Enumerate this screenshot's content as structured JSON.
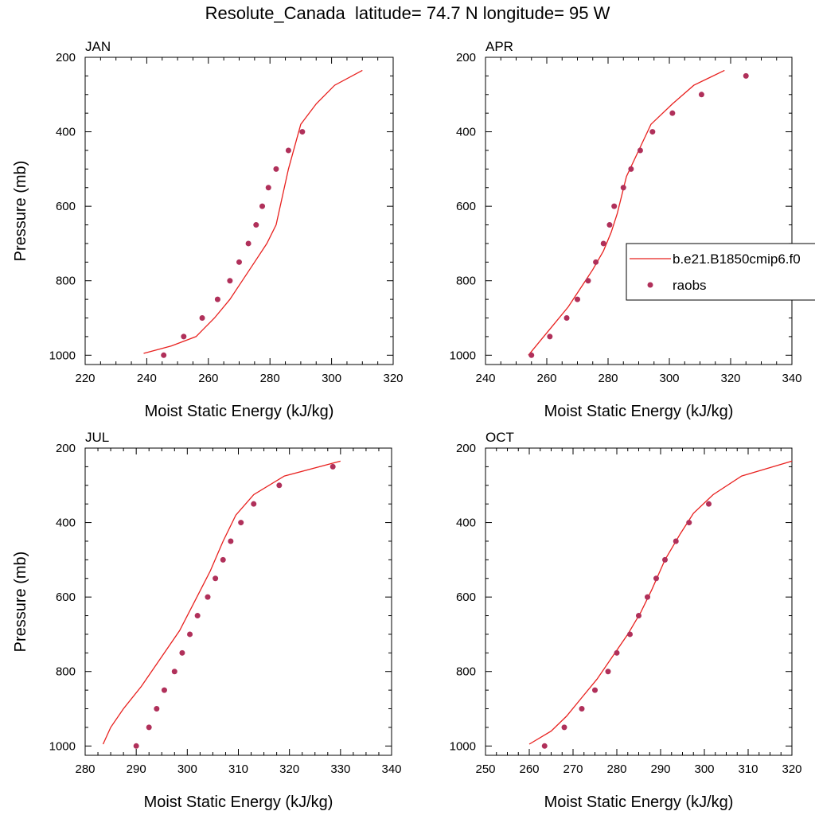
{
  "title": "Resolute_Canada  latitude= 74.7 N longitude= 95 W",
  "colors": {
    "model": "#e8201e",
    "raobs": "#b0305a",
    "frame": "#000000"
  },
  "legend": {
    "model_label": "b.e21.B1850cmip6.f0",
    "obs_label": "raobs"
  },
  "chart_data": [
    {
      "type": "line",
      "panel": "JAN",
      "xlabel": "Moist Static Energy (kJ/kg)",
      "ylabel": "Pressure (mb)",
      "xlim": [
        220,
        320
      ],
      "ylim": [
        1025,
        200
      ],
      "xticks": [
        220,
        240,
        260,
        280,
        300,
        320
      ],
      "yticks": [
        200,
        400,
        600,
        800,
        1000
      ],
      "model": {
        "x": [
          239,
          248,
          256,
          262,
          267,
          271,
          275,
          279,
          282,
          286,
          290,
          295,
          301,
          310
        ],
        "y": [
          995,
          975,
          950,
          900,
          850,
          800,
          750,
          700,
          650,
          500,
          380,
          325,
          275,
          235
        ]
      },
      "raobs": {
        "x": [
          245.5,
          252,
          258,
          263,
          267,
          270,
          273,
          275.5,
          277.5,
          279.5,
          282,
          286,
          290.5
        ],
        "y": [
          1000,
          950,
          900,
          850,
          800,
          750,
          700,
          650,
          600,
          550,
          500,
          450,
          400
        ]
      }
    },
    {
      "type": "line",
      "panel": "APR",
      "xlabel": "Moist Static Energy (kJ/kg)",
      "ylabel": "",
      "xlim": [
        240,
        340
      ],
      "ylim": [
        1025,
        200
      ],
      "xticks": [
        240,
        260,
        280,
        300,
        320,
        340
      ],
      "yticks": [
        200,
        400,
        600,
        800,
        1000
      ],
      "model": {
        "x": [
          254,
          258,
          262,
          267,
          271,
          275,
          278.5,
          281,
          283,
          286,
          290,
          294,
          301,
          308,
          318
        ],
        "y": [
          1000,
          960,
          920,
          870,
          820,
          770,
          720,
          670,
          620,
          520,
          450,
          380,
          325,
          275,
          235
        ]
      },
      "raobs": {
        "x": [
          255,
          261,
          266.5,
          270,
          273.5,
          276,
          278.5,
          280.5,
          282,
          285,
          287.5,
          290.5,
          294.5,
          301,
          310.5,
          325
        ],
        "y": [
          1000,
          950,
          900,
          850,
          800,
          750,
          700,
          650,
          600,
          550,
          500,
          450,
          400,
          350,
          300,
          250
        ]
      }
    },
    {
      "type": "line",
      "panel": "JUL",
      "xlabel": "Moist Static Energy (kJ/kg)",
      "ylabel": "Pressure (mb)",
      "xlim": [
        280,
        340
      ],
      "ylim": [
        1025,
        200
      ],
      "xticks": [
        280,
        290,
        300,
        310,
        320,
        330,
        340
      ],
      "yticks": [
        200,
        400,
        600,
        800,
        1000
      ],
      "model": {
        "x": [
          283.5,
          285,
          287.5,
          291,
          294.5,
          298.5,
          301.5,
          304.5,
          307,
          309.5,
          313,
          319,
          330
        ],
        "y": [
          995,
          950,
          900,
          840,
          770,
          690,
          610,
          530,
          450,
          380,
          325,
          275,
          235
        ]
      },
      "raobs": {
        "x": [
          290,
          292.5,
          294,
          295.5,
          297.5,
          299,
          300.5,
          302,
          304,
          305.5,
          307,
          308.5,
          310.5,
          313,
          318,
          328.5
        ],
        "y": [
          1000,
          950,
          900,
          850,
          800,
          750,
          700,
          650,
          600,
          550,
          500,
          450,
          400,
          350,
          300,
          250
        ]
      }
    },
    {
      "type": "line",
      "panel": "OCT",
      "xlabel": "Moist Static Energy (kJ/kg)",
      "ylabel": "",
      "xlim": [
        250,
        320
      ],
      "ylim": [
        1025,
        200
      ],
      "xticks": [
        250,
        260,
        270,
        280,
        290,
        300,
        310,
        320
      ],
      "yticks": [
        200,
        400,
        600,
        800,
        1000
      ],
      "model": {
        "x": [
          260,
          265,
          268.5,
          272,
          275.5,
          279,
          282.5,
          285.5,
          288,
          291,
          294.5,
          297.5,
          302,
          308.5,
          320
        ],
        "y": [
          995,
          960,
          920,
          870,
          820,
          760,
          700,
          640,
          580,
          500,
          430,
          375,
          325,
          275,
          235
        ]
      },
      "raobs": {
        "x": [
          263.5,
          268,
          272,
          275,
          278,
          280,
          283,
          285,
          287,
          289,
          291,
          293.5,
          296.5,
          301
        ],
        "y": [
          1000,
          950,
          900,
          850,
          800,
          750,
          700,
          650,
          600,
          550,
          500,
          450,
          400,
          350
        ]
      }
    }
  ]
}
